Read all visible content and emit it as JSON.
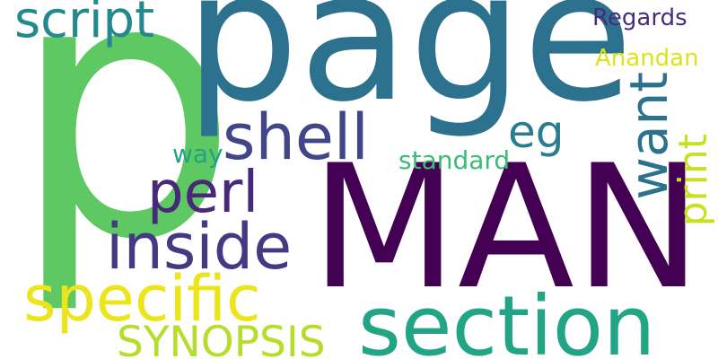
{
  "words": [
    {
      "text": "p",
      "color": "#5ec962"
    },
    {
      "text": "page",
      "color": "#2c728e"
    },
    {
      "text": "MAN",
      "color": "#440154"
    },
    {
      "text": "section",
      "color": "#21a585"
    },
    {
      "text": "script",
      "color": "#23898e"
    },
    {
      "text": "specific",
      "color": "#ece51b"
    },
    {
      "text": "inside",
      "color": "#443983"
    },
    {
      "text": "shell",
      "color": "#404688"
    },
    {
      "text": "perl",
      "color": "#482878"
    },
    {
      "text": "want",
      "color": "#2c728e"
    },
    {
      "text": "print",
      "color": "#c8e020"
    },
    {
      "text": "SYNOPSIS",
      "color": "#b5de2b"
    },
    {
      "text": "eg",
      "color": "#287d8e"
    },
    {
      "text": "Regards",
      "color": "#472d7b"
    },
    {
      "text": "Anandan",
      "color": "#dde318"
    },
    {
      "text": "standard",
      "color": "#3bbb75"
    },
    {
      "text": "way",
      "color": "#1fa287"
    }
  ]
}
